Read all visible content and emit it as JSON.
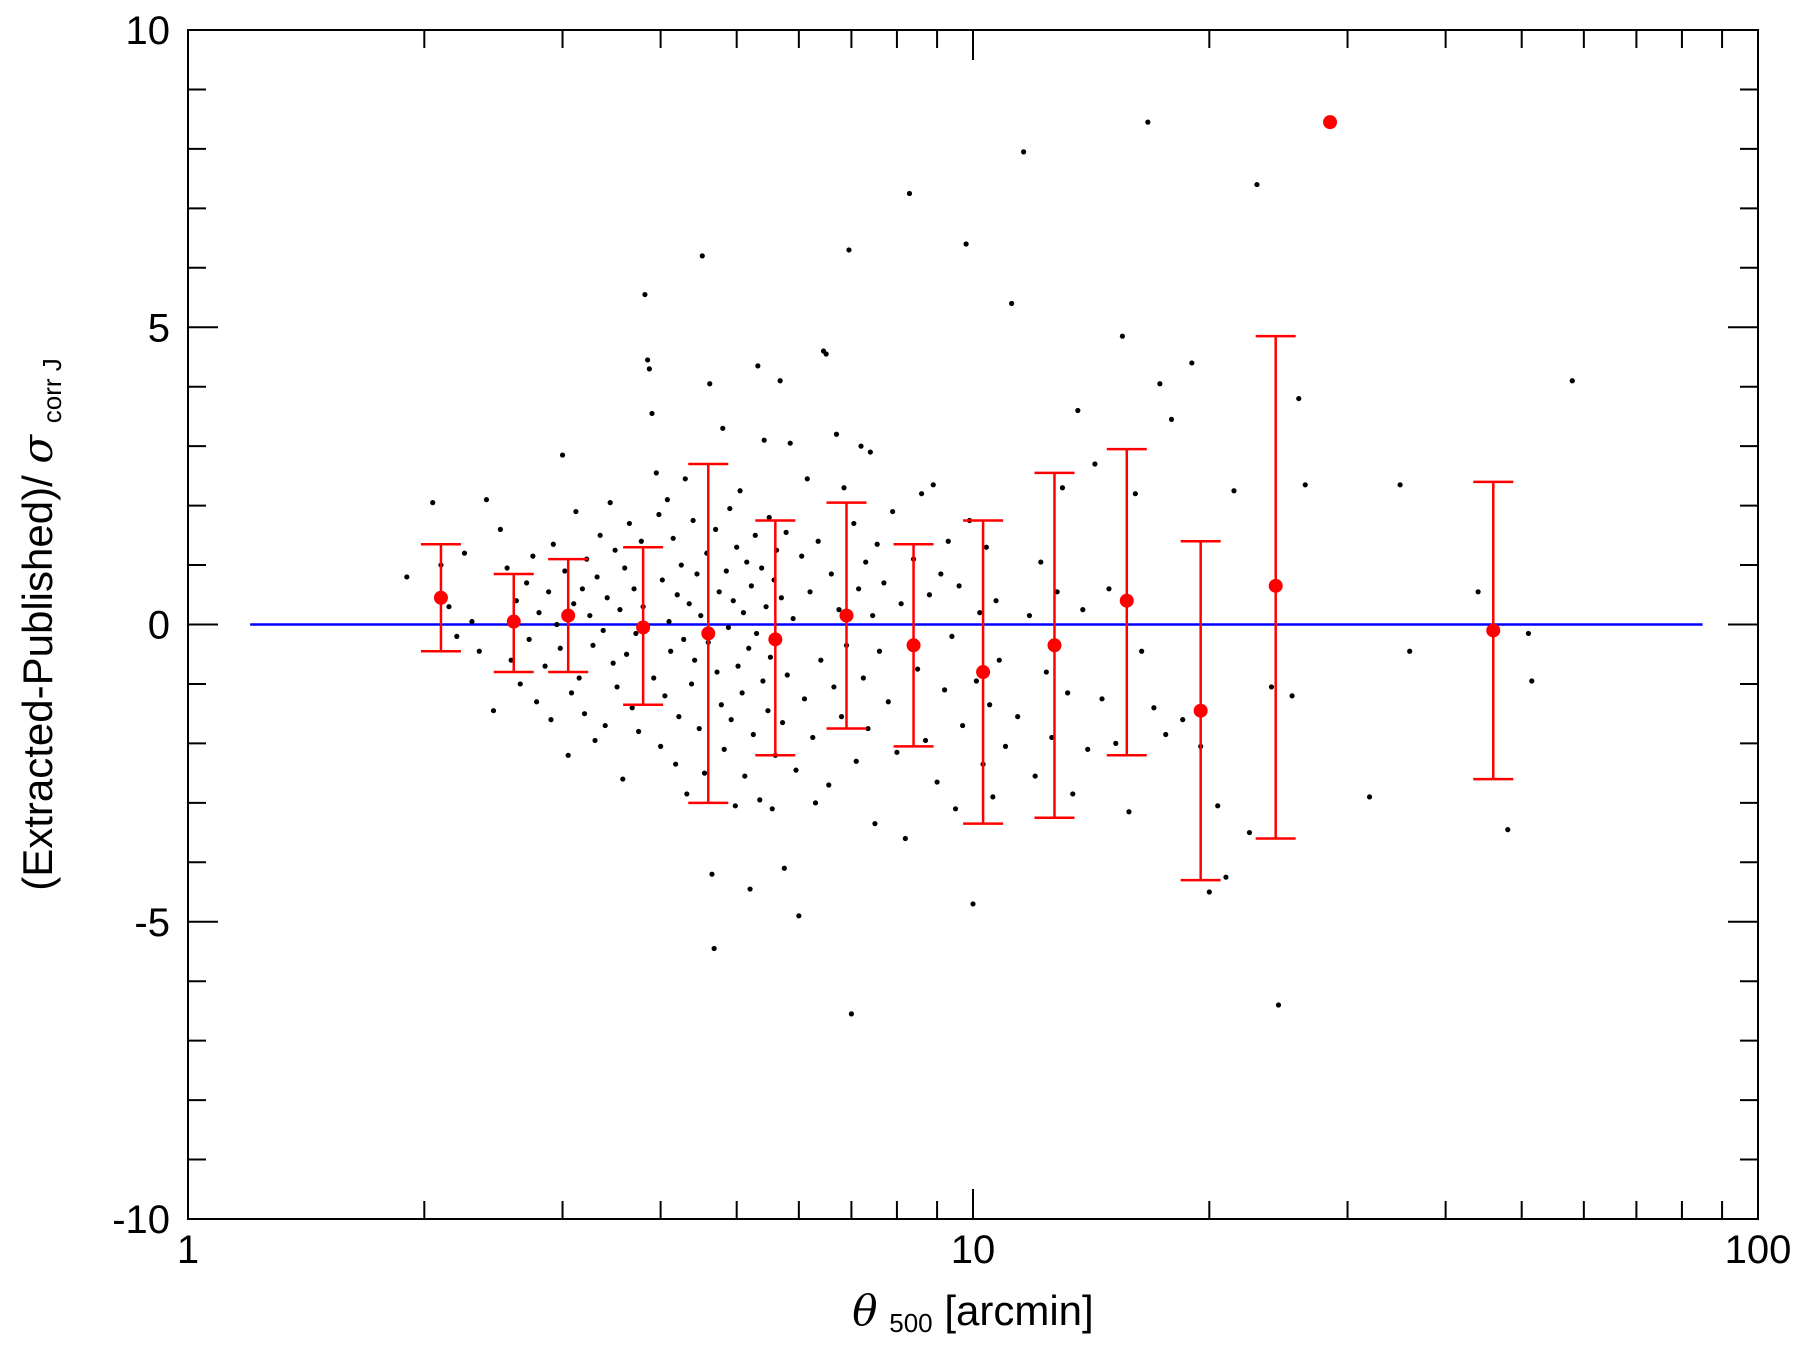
{
  "chart_data": {
    "type": "scatter",
    "x_scale": "log",
    "xlim": [
      1,
      100
    ],
    "ylim": [
      -10,
      10
    ],
    "grid": false,
    "xlabel": {
      "symbol": "θ",
      "subscript": "500",
      "text": " [arcmin]"
    },
    "ylabel": {
      "text": "(Extracted-Published)/",
      "symbol": "σ",
      "subscript": "corr J"
    },
    "x_ticks": [
      {
        "value": 1,
        "label": "1"
      },
      {
        "value": 10,
        "label": "10"
      },
      {
        "value": 100,
        "label": "100"
      }
    ],
    "y_ticks": [
      {
        "value": 10,
        "label": "10"
      },
      {
        "value": 5,
        "label": "5"
      },
      {
        "value": 0,
        "label": "0"
      },
      {
        "value": -5,
        "label": "-5"
      },
      {
        "value": -10,
        "label": "-10"
      }
    ],
    "reference_line": {
      "y": 0,
      "x_range": [
        1.2,
        85
      ],
      "color": "#0000ff"
    },
    "colors": {
      "points": "#000000",
      "binned": "#ff0000",
      "reference": "#0000ff"
    },
    "binned_means": [
      {
        "x": 2.1,
        "y": 0.45,
        "err_low": -0.45,
        "err_high": 1.35
      },
      {
        "x": 2.6,
        "y": 0.05,
        "err_low": -0.8,
        "err_high": 0.85
      },
      {
        "x": 3.05,
        "y": 0.15,
        "err_low": -0.8,
        "err_high": 1.1
      },
      {
        "x": 3.8,
        "y": -0.05,
        "err_low": -1.35,
        "err_high": 1.3
      },
      {
        "x": 4.6,
        "y": -0.15,
        "err_low": -3.0,
        "err_high": 2.7
      },
      {
        "x": 5.6,
        "y": -0.25,
        "err_low": -2.2,
        "err_high": 1.75
      },
      {
        "x": 6.9,
        "y": 0.15,
        "err_low": -1.75,
        "err_high": 2.05
      },
      {
        "x": 8.4,
        "y": -0.35,
        "err_low": -2.05,
        "err_high": 1.35
      },
      {
        "x": 10.3,
        "y": -0.8,
        "err_low": -3.35,
        "err_high": 1.75
      },
      {
        "x": 12.7,
        "y": -0.35,
        "err_low": -3.25,
        "err_high": 2.55
      },
      {
        "x": 15.7,
        "y": 0.4,
        "err_low": -2.2,
        "err_high": 2.95
      },
      {
        "x": 19.5,
        "y": -1.45,
        "err_low": -4.3,
        "err_high": 1.4
      },
      {
        "x": 24.3,
        "y": 0.65,
        "err_low": -3.6,
        "err_high": 4.85
      },
      {
        "x": 28.5,
        "y": 8.45,
        "err_low": null,
        "err_high": null
      },
      {
        "x": 46.0,
        "y": -0.1,
        "err_low": -2.6,
        "err_high": 2.4
      }
    ],
    "scatter_points": [
      [
        1.9,
        0.8
      ],
      [
        2.05,
        2.05
      ],
      [
        2.1,
        1.0
      ],
      [
        2.15,
        0.3
      ],
      [
        2.2,
        -0.2
      ],
      [
        2.25,
        1.2
      ],
      [
        2.3,
        0.05
      ],
      [
        2.35,
        -0.45
      ],
      [
        2.4,
        2.1
      ],
      [
        2.45,
        -1.45
      ],
      [
        2.5,
        1.6
      ],
      [
        2.55,
        0.95
      ],
      [
        2.58,
        -0.6
      ],
      [
        2.62,
        0.4
      ],
      [
        2.65,
        -1.0
      ],
      [
        2.7,
        0.7
      ],
      [
        2.72,
        -0.25
      ],
      [
        2.75,
        1.15
      ],
      [
        2.78,
        -1.3
      ],
      [
        2.8,
        0.2
      ],
      [
        2.85,
        -0.7
      ],
      [
        2.88,
        0.55
      ],
      [
        2.9,
        -1.6
      ],
      [
        2.92,
        1.35
      ],
      [
        2.95,
        0.0
      ],
      [
        2.98,
        -0.4
      ],
      [
        3.0,
        2.85
      ],
      [
        3.02,
        0.9
      ],
      [
        3.05,
        -2.2
      ],
      [
        3.08,
        -1.15
      ],
      [
        3.1,
        0.35
      ],
      [
        3.12,
        1.9
      ],
      [
        3.15,
        -0.9
      ],
      [
        3.18,
        0.6
      ],
      [
        3.2,
        -1.5
      ],
      [
        3.22,
        1.1
      ],
      [
        3.25,
        0.15
      ],
      [
        3.28,
        -0.35
      ],
      [
        3.3,
        -1.95
      ],
      [
        3.32,
        0.8
      ],
      [
        3.35,
        1.5
      ],
      [
        3.38,
        -0.1
      ],
      [
        3.4,
        -1.7
      ],
      [
        3.42,
        0.45
      ],
      [
        3.45,
        2.05
      ],
      [
        3.48,
        -0.65
      ],
      [
        3.5,
        1.25
      ],
      [
        3.52,
        -1.05
      ],
      [
        3.55,
        0.25
      ],
      [
        3.58,
        -2.6
      ],
      [
        3.6,
        0.95
      ],
      [
        3.62,
        -0.5
      ],
      [
        3.65,
        1.7
      ],
      [
        3.68,
        -1.4
      ],
      [
        3.7,
        0.6
      ],
      [
        3.72,
        -0.15
      ],
      [
        3.75,
        -1.8
      ],
      [
        3.78,
        1.4
      ],
      [
        3.8,
        0.3
      ],
      [
        3.82,
        5.55
      ],
      [
        3.85,
        4.45
      ],
      [
        3.87,
        4.3
      ],
      [
        3.9,
        3.55
      ],
      [
        3.92,
        -0.9
      ],
      [
        3.95,
        2.55
      ],
      [
        3.98,
        1.85
      ],
      [
        4.0,
        -2.05
      ],
      [
        4.02,
        0.75
      ],
      [
        4.05,
        -1.2
      ],
      [
        4.08,
        2.1
      ],
      [
        4.1,
        0.05
      ],
      [
        4.12,
        -0.45
      ],
      [
        4.15,
        1.45
      ],
      [
        4.18,
        -2.35
      ],
      [
        4.2,
        0.5
      ],
      [
        4.22,
        -1.55
      ],
      [
        4.25,
        1.0
      ],
      [
        4.28,
        -0.25
      ],
      [
        4.3,
        2.45
      ],
      [
        4.32,
        -2.85
      ],
      [
        4.35,
        0.35
      ],
      [
        4.38,
        -1.0
      ],
      [
        4.4,
        1.75
      ],
      [
        4.42,
        -0.6
      ],
      [
        4.45,
        0.85
      ],
      [
        4.48,
        -1.75
      ],
      [
        4.5,
        0.15
      ],
      [
        4.52,
        6.2
      ],
      [
        4.55,
        -2.5
      ],
      [
        4.58,
        1.2
      ],
      [
        4.6,
        -0.3
      ],
      [
        4.62,
        4.05
      ],
      [
        4.65,
        -4.2
      ],
      [
        4.68,
        -5.45
      ],
      [
        4.7,
        1.6
      ],
      [
        4.72,
        -0.8
      ],
      [
        4.75,
        0.55
      ],
      [
        4.78,
        -1.35
      ],
      [
        4.8,
        3.3
      ],
      [
        4.82,
        -2.1
      ],
      [
        4.85,
        0.9
      ],
      [
        4.88,
        -0.05
      ],
      [
        4.9,
        1.95
      ],
      [
        4.92,
        -1.6
      ],
      [
        4.95,
        0.4
      ],
      [
        4.98,
        -3.05
      ],
      [
        5.0,
        1.3
      ],
      [
        5.02,
        -0.7
      ],
      [
        5.05,
        2.25
      ],
      [
        5.08,
        -1.15
      ],
      [
        5.1,
        0.2
      ],
      [
        5.12,
        -2.55
      ],
      [
        5.15,
        1.05
      ],
      [
        5.18,
        -0.4
      ],
      [
        5.2,
        -4.45
      ],
      [
        5.22,
        0.65
      ],
      [
        5.25,
        -1.85
      ],
      [
        5.28,
        1.5
      ],
      [
        5.3,
        -0.15
      ],
      [
        5.32,
        4.35
      ],
      [
        5.35,
        -2.95
      ],
      [
        5.38,
        0.95
      ],
      [
        5.4,
        -0.95
      ],
      [
        5.42,
        3.1
      ],
      [
        5.45,
        0.3
      ],
      [
        5.48,
        -1.45
      ],
      [
        5.5,
        1.8
      ],
      [
        5.52,
        -0.55
      ],
      [
        5.55,
        -3.1
      ],
      [
        5.58,
        0.75
      ],
      [
        5.6,
        -2.2
      ],
      [
        5.62,
        1.25
      ],
      [
        5.65,
        -0.25
      ],
      [
        5.68,
        4.1
      ],
      [
        5.7,
        0.45
      ],
      [
        5.72,
        -1.65
      ],
      [
        5.75,
        -4.1
      ],
      [
        5.78,
        1.55
      ],
      [
        5.8,
        -0.85
      ],
      [
        5.85,
        3.05
      ],
      [
        5.9,
        0.1
      ],
      [
        5.95,
        -2.45
      ],
      [
        6.0,
        -4.9
      ],
      [
        6.05,
        1.15
      ],
      [
        6.1,
        -1.25
      ],
      [
        6.15,
        2.45
      ],
      [
        6.2,
        0.55
      ],
      [
        6.25,
        -1.9
      ],
      [
        6.3,
        -3.0
      ],
      [
        6.35,
        1.4
      ],
      [
        6.4,
        -0.6
      ],
      [
        6.45,
        4.6
      ],
      [
        6.5,
        4.55
      ],
      [
        6.55,
        -2.7
      ],
      [
        6.6,
        0.85
      ],
      [
        6.65,
        -1.05
      ],
      [
        6.7,
        3.2
      ],
      [
        6.75,
        0.25
      ],
      [
        6.8,
        -1.55
      ],
      [
        6.85,
        2.3
      ],
      [
        6.9,
        -0.35
      ],
      [
        6.95,
        6.3
      ],
      [
        7.0,
        -6.55
      ],
      [
        7.05,
        1.7
      ],
      [
        7.1,
        -2.3
      ],
      [
        7.15,
        0.6
      ],
      [
        7.2,
        3.0
      ],
      [
        7.25,
        -0.9
      ],
      [
        7.3,
        1.05
      ],
      [
        7.35,
        -1.75
      ],
      [
        7.4,
        2.9
      ],
      [
        7.45,
        0.15
      ],
      [
        7.5,
        -3.35
      ],
      [
        7.55,
        1.35
      ],
      [
        7.6,
        -0.45
      ],
      [
        7.7,
        0.7
      ],
      [
        7.8,
        -1.3
      ],
      [
        7.9,
        1.9
      ],
      [
        8.0,
        -2.15
      ],
      [
        8.1,
        0.35
      ],
      [
        8.2,
        -3.6
      ],
      [
        8.3,
        7.25
      ],
      [
        8.4,
        1.1
      ],
      [
        8.5,
        -0.75
      ],
      [
        8.6,
        2.2
      ],
      [
        8.7,
        -1.95
      ],
      [
        8.8,
        0.5
      ],
      [
        8.9,
        2.35
      ],
      [
        9.0,
        -2.65
      ],
      [
        9.1,
        0.85
      ],
      [
        9.2,
        -1.1
      ],
      [
        9.3,
        1.4
      ],
      [
        9.4,
        -0.2
      ],
      [
        9.5,
        -3.1
      ],
      [
        9.6,
        0.65
      ],
      [
        9.7,
        -1.7
      ],
      [
        9.8,
        6.4
      ],
      [
        9.9,
        1.75
      ],
      [
        10.0,
        -4.7
      ],
      [
        10.1,
        -0.95
      ],
      [
        10.2,
        0.2
      ],
      [
        10.3,
        -2.35
      ],
      [
        10.4,
        1.3
      ],
      [
        10.5,
        -1.35
      ],
      [
        10.6,
        -2.9
      ],
      [
        10.7,
        0.4
      ],
      [
        10.8,
        -0.6
      ],
      [
        11.0,
        -2.05
      ],
      [
        11.2,
        5.4
      ],
      [
        11.4,
        -1.55
      ],
      [
        11.6,
        7.95
      ],
      [
        11.8,
        0.15
      ],
      [
        12.0,
        -2.55
      ],
      [
        12.2,
        1.05
      ],
      [
        12.4,
        -0.8
      ],
      [
        12.6,
        -1.9
      ],
      [
        12.8,
        0.55
      ],
      [
        13.0,
        2.3
      ],
      [
        13.2,
        -1.15
      ],
      [
        13.4,
        -2.85
      ],
      [
        13.6,
        3.6
      ],
      [
        13.8,
        0.25
      ],
      [
        14.0,
        -2.1
      ],
      [
        14.3,
        2.7
      ],
      [
        14.6,
        -1.25
      ],
      [
        14.9,
        0.6
      ],
      [
        15.2,
        -2.0
      ],
      [
        15.5,
        4.85
      ],
      [
        15.8,
        -3.15
      ],
      [
        16.1,
        2.2
      ],
      [
        16.4,
        -0.45
      ],
      [
        16.7,
        8.45
      ],
      [
        17.0,
        -1.4
      ],
      [
        17.3,
        4.05
      ],
      [
        17.6,
        -1.85
      ],
      [
        17.9,
        3.45
      ],
      [
        18.5,
        -1.6
      ],
      [
        19.0,
        4.4
      ],
      [
        19.5,
        -2.05
      ],
      [
        20.0,
        -4.5
      ],
      [
        20.5,
        -3.05
      ],
      [
        21.0,
        -4.25
      ],
      [
        21.5,
        2.25
      ],
      [
        22.5,
        -3.5
      ],
      [
        23.0,
        7.4
      ],
      [
        24.0,
        -1.05
      ],
      [
        24.5,
        -6.4
      ],
      [
        25.5,
        -1.2
      ],
      [
        26.0,
        3.8
      ],
      [
        26.5,
        2.35
      ],
      [
        32.0,
        -2.9
      ],
      [
        35.0,
        2.35
      ],
      [
        36.0,
        -0.45
      ],
      [
        44.0,
        0.55
      ],
      [
        48.0,
        -3.45
      ],
      [
        51.0,
        -0.15
      ],
      [
        51.5,
        -0.95
      ],
      [
        58.0,
        4.1
      ]
    ]
  }
}
